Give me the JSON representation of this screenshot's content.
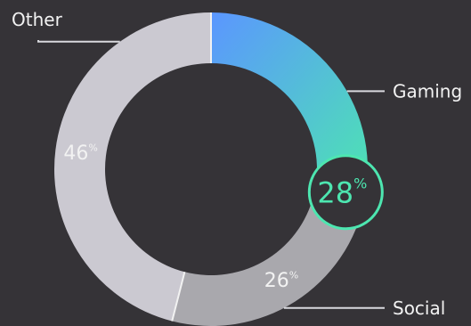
{
  "chart_data": {
    "type": "pie",
    "series": [
      {
        "name": "Gaming",
        "value": 28,
        "color_start": "#5b96ff",
        "color_end": "#4de6b0",
        "highlighted": true
      },
      {
        "name": "Social",
        "value": 26,
        "color": "#a9a8ad"
      },
      {
        "name": "Other",
        "value": 46,
        "color": "#cbc9d1"
      }
    ],
    "unit": "%",
    "donut": true
  },
  "colors": {
    "background": "#353337",
    "label_text": "#f2f2f2",
    "callout_ring": "#4de6b0",
    "callout_text": "#4de6b0",
    "leader_line": "#d9d9de"
  }
}
